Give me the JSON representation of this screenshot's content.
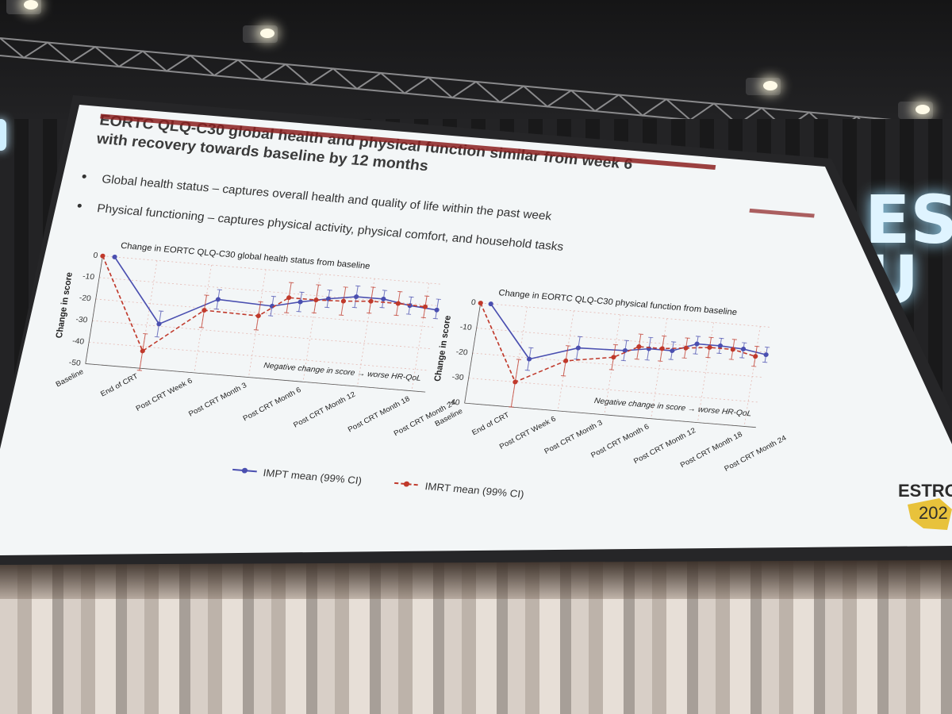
{
  "slide": {
    "title_line1": "EORTC QLQ-C30 global health and physical function similar from week 6",
    "title_line2": "with recovery towards baseline by 12 months",
    "bullets": [
      "Global health status – captures overall health and quality of life within the past week",
      "Physical functioning – captures physical activity, physical comfort, and household tasks"
    ],
    "logo_text": "ESTRO",
    "logo_year": "202"
  },
  "background": {
    "sign_text": "ES\nU"
  },
  "legend": {
    "impt_label": "IMPT mean (99% CI)",
    "imrt_label": "IMRT mean (99% CI)"
  },
  "colors": {
    "impt": "#4a4fb0",
    "imrt": "#c0392b",
    "title_bar": "#8b2020",
    "screen_bg": "#f3f6f7",
    "grid": "#e5b9b3"
  },
  "chart_data": [
    {
      "type": "line",
      "title": "Change in EORTC QLQ-C30 global health status from baseline",
      "ylabel": "Change in score",
      "xlabel": "",
      "ylim": [
        -50,
        0
      ],
      "yticks": [
        0,
        -10,
        -20,
        -30,
        -40,
        -50
      ],
      "annotation": "Negative change in score → worse HR-QoL",
      "categories": [
        "Baseline",
        "End of CRT",
        "Post CRT Week 6",
        "Post CRT Month 3",
        "Post CRT Month 6",
        "Post CRT Month 12",
        "Post CRT Month 18",
        "Post CRT Month 24"
      ],
      "x": [
        0,
        1,
        2,
        2.25,
        3,
        3.25,
        4,
        4.25,
        5,
        5.25,
        6,
        6.25,
        7,
        7.25
      ],
      "series": [
        {
          "name": "IMPT mean (99% CI)",
          "x": [
            0.22,
            1.22,
            2.22,
            3.22,
            3.72,
            4.22,
            4.72,
            5.22,
            5.72,
            6.22
          ],
          "values": [
            0,
            -29,
            -15.5,
            -16.5,
            -13.5,
            -11,
            -9,
            -9,
            -11,
            -12
          ],
          "ci_low": [
            0,
            -35,
            -20,
            -21,
            -18,
            -15,
            -14,
            -13,
            -15,
            -16
          ],
          "ci_high": [
            0,
            -23,
            -11,
            -12,
            -9,
            -7,
            -4,
            -5,
            -7,
            -7
          ]
        },
        {
          "name": "IMRT mean (99% CI)",
          "x": [
            0,
            1,
            2,
            3,
            3.5,
            4,
            4.5,
            5,
            5.5,
            6
          ],
          "values": [
            0,
            -42,
            -21,
            -21.5,
            -12,
            -12,
            -11.5,
            -10.5,
            -10.5,
            -11
          ],
          "ci_low": [
            0,
            -51,
            -29,
            -28,
            -19,
            -18,
            -18,
            -16,
            -16,
            -16
          ],
          "ci_high": [
            0,
            -34,
            -14,
            -15,
            -5,
            -5,
            -5,
            -4,
            -5,
            -6
          ]
        }
      ]
    },
    {
      "type": "line",
      "title": "Change in EORTC QLQ-C30 physical function from baseline",
      "ylabel": "Change in score",
      "xlabel": "",
      "ylim": [
        -40,
        0
      ],
      "yticks": [
        0,
        -10,
        -20,
        -30,
        -40
      ],
      "annotation": "Negative change in score → worse HR-QoL",
      "categories": [
        "Baseline",
        "End of CRT",
        "Post CRT Week 6",
        "Post CRT Month 3",
        "Post CRT Month 6",
        "Post CRT Month 12",
        "Post CRT Month 18",
        "Post CRT Month 24"
      ],
      "series": [
        {
          "name": "IMPT mean (99% CI)",
          "x": [
            0.22,
            1.22,
            2.22,
            3.22,
            3.72,
            4.22,
            4.72,
            5.22,
            5.72,
            6.22
          ],
          "values": [
            0,
            -20.5,
            -14.5,
            -14,
            -12.5,
            -12.5,
            -9,
            -9,
            -9.5,
            -11
          ],
          "ci_low": [
            0,
            -25,
            -19,
            -18,
            -17,
            -16,
            -13,
            -12,
            -13,
            -14
          ],
          "ci_high": [
            0,
            -16,
            -10,
            -10,
            -8,
            -9,
            -6,
            -6,
            -7,
            -8
          ]
        },
        {
          "name": "IMRT mean (99% CI)",
          "x": [
            0,
            1,
            2,
            3,
            3.5,
            4,
            4.5,
            5,
            5.5,
            6
          ],
          "values": [
            0,
            -30,
            -20,
            -17,
            -12,
            -12,
            -11,
            -10,
            -10,
            -12
          ],
          "ci_low": [
            0,
            -40,
            -26,
            -22,
            -17,
            -17,
            -15,
            -14,
            -14,
            -16
          ],
          "ci_high": [
            0,
            -21,
            -14,
            -12,
            -7,
            -7,
            -7,
            -6,
            -6,
            -8
          ]
        }
      ]
    }
  ]
}
